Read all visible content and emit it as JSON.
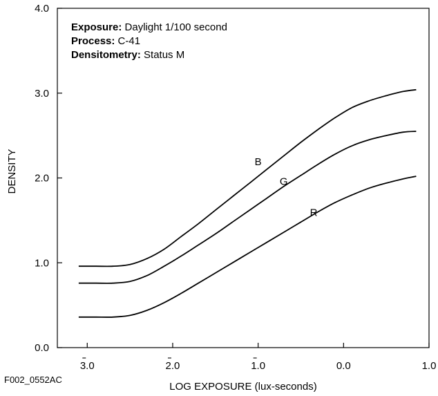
{
  "chart_data": {
    "type": "line",
    "xlabel": "LOG EXPOSURE (lux-seconds)",
    "ylabel": "DENSITY",
    "xlim": [
      -3.35,
      1.0
    ],
    "ylim": [
      0.0,
      4.0
    ],
    "grid": false,
    "x_ticks": [
      {
        "value": -3.0,
        "label": "3.0",
        "bar": true
      },
      {
        "value": -2.0,
        "label": "2.0",
        "bar": true
      },
      {
        "value": -1.0,
        "label": "1.0",
        "bar": true
      },
      {
        "value": 0.0,
        "label": "0.0",
        "bar": false
      },
      {
        "value": 1.0,
        "label": "1.0",
        "bar": false
      }
    ],
    "y_ticks": [
      {
        "value": 0.0,
        "label": "0.0"
      },
      {
        "value": 1.0,
        "label": "1.0"
      },
      {
        "value": 2.0,
        "label": "2.0"
      },
      {
        "value": 3.0,
        "label": "3.0"
      },
      {
        "value": 4.0,
        "label": "4.0"
      }
    ],
    "annotation": [
      {
        "bold": "Exposure:",
        "text": " Daylight 1/100 second"
      },
      {
        "bold": "Process:",
        "text": " C-41"
      },
      {
        "bold": "Densitometry:",
        "text": " Status M"
      }
    ],
    "series": [
      {
        "name": "B",
        "color": "#000000",
        "label_at": [
          -1.0,
          2.15
        ],
        "x": [
          -3.1,
          -2.9,
          -2.7,
          -2.5,
          -2.3,
          -2.1,
          -1.9,
          -1.7,
          -1.5,
          -1.3,
          -1.1,
          -0.9,
          -0.7,
          -0.5,
          -0.3,
          -0.1,
          0.1,
          0.3,
          0.5,
          0.7,
          0.85
        ],
        "values": [
          0.96,
          0.96,
          0.96,
          0.98,
          1.05,
          1.16,
          1.31,
          1.46,
          1.62,
          1.78,
          1.94,
          2.1,
          2.26,
          2.42,
          2.57,
          2.71,
          2.83,
          2.91,
          2.97,
          3.02,
          3.04
        ]
      },
      {
        "name": "G",
        "color": "#000000",
        "label_at": [
          -0.7,
          1.92
        ],
        "x": [
          -3.1,
          -2.9,
          -2.7,
          -2.5,
          -2.3,
          -2.1,
          -1.9,
          -1.7,
          -1.5,
          -1.3,
          -1.1,
          -0.9,
          -0.7,
          -0.5,
          -0.3,
          -0.1,
          0.1,
          0.3,
          0.5,
          0.7,
          0.85
        ],
        "values": [
          0.76,
          0.76,
          0.76,
          0.78,
          0.85,
          0.96,
          1.08,
          1.21,
          1.34,
          1.48,
          1.62,
          1.76,
          1.9,
          2.03,
          2.16,
          2.28,
          2.38,
          2.45,
          2.5,
          2.54,
          2.55
        ]
      },
      {
        "name": "R",
        "color": "#000000",
        "label_at": [
          -0.35,
          1.55
        ],
        "x": [
          -3.1,
          -2.9,
          -2.7,
          -2.5,
          -2.3,
          -2.1,
          -1.9,
          -1.7,
          -1.5,
          -1.3,
          -1.1,
          -0.9,
          -0.7,
          -0.5,
          -0.3,
          -0.1,
          0.1,
          0.3,
          0.5,
          0.7,
          0.85
        ],
        "values": [
          0.36,
          0.36,
          0.36,
          0.38,
          0.44,
          0.53,
          0.64,
          0.76,
          0.88,
          1.0,
          1.12,
          1.24,
          1.36,
          1.48,
          1.6,
          1.71,
          1.8,
          1.88,
          1.94,
          1.99,
          2.02
        ]
      }
    ]
  },
  "figure_id": "F002_0552AC"
}
